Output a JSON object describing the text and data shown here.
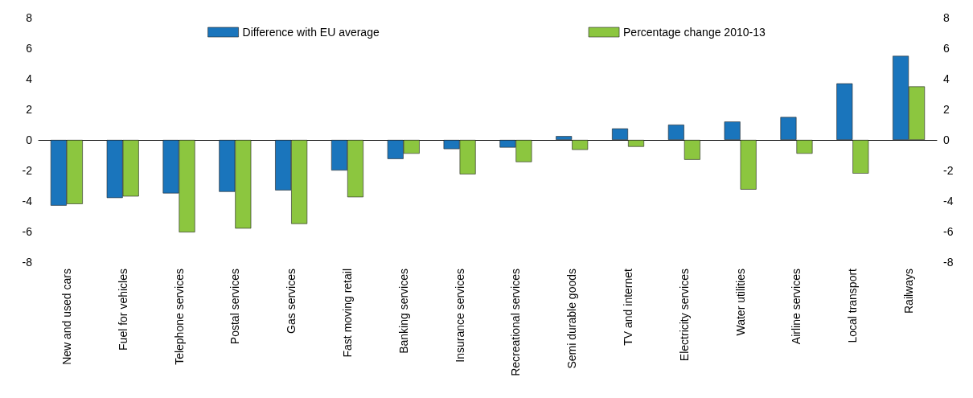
{
  "chart_data": {
    "type": "bar",
    "categories": [
      "New and used cars",
      "Fuel for vehicles",
      "Telephone services",
      "Postal services",
      "Gas services",
      "Fast moving retail",
      "Banking services",
      "Insurance services",
      "Recreational services",
      "Semi durable goods",
      "TV and internet",
      "Electricity services",
      "Water utilities",
      "Airline services",
      "Local transport",
      "Railways"
    ],
    "series": [
      {
        "name": "Difference with EU average",
        "color": "#1a75bc",
        "values": [
          -4.3,
          -3.8,
          -3.5,
          -3.4,
          -3.3,
          -2.0,
          -1.25,
          -0.6,
          -0.5,
          0.25,
          0.75,
          1.0,
          1.2,
          1.5,
          3.7,
          5.5
        ]
      },
      {
        "name": "Percentage change 2010-13",
        "color": "#8cc63f",
        "values": [
          -4.2,
          -3.7,
          -6.05,
          -5.8,
          -5.5,
          -3.75,
          -0.9,
          -2.25,
          -1.45,
          -0.65,
          -0.45,
          -1.3,
          -3.25,
          -0.9,
          -2.2,
          3.5
        ]
      }
    ],
    "ylim": [
      -8,
      8
    ],
    "yticks": [
      -8,
      -6,
      -4,
      -2,
      0,
      2,
      4,
      6,
      8
    ],
    "y2lim": [
      -8,
      8
    ],
    "y2ticks": [
      -8,
      -6,
      -4,
      -2,
      0,
      2,
      4,
      6,
      8
    ],
    "legend": "top"
  }
}
